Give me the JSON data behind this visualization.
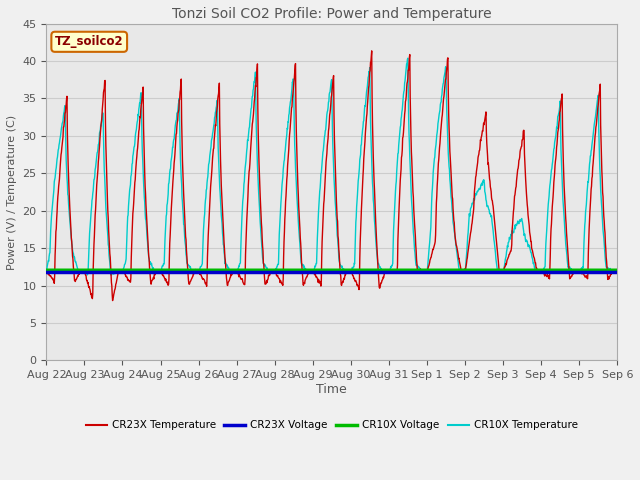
{
  "title": "Tonzi Soil CO2 Profile: Power and Temperature",
  "xlabel": "Time",
  "ylabel": "Power (V) / Temperature (C)",
  "ylim": [
    0,
    45
  ],
  "yticks": [
    0,
    5,
    10,
    15,
    20,
    25,
    30,
    35,
    40,
    45
  ],
  "fig_bg_color": "#f0f0f0",
  "plot_bg_color": "#e8e8e8",
  "annotation_text": "TZ_soilco2",
  "annotation_color": "#8b0000",
  "annotation_bg": "#ffffcc",
  "annotation_border": "#cc6600",
  "legend_entries": [
    "CR23X Temperature",
    "CR23X Voltage",
    "CR10X Voltage",
    "CR10X Temperature"
  ],
  "legend_colors": [
    "#cc0000",
    "#0000cc",
    "#00bb00",
    "#00cccc"
  ],
  "voltage_cr23x": 11.75,
  "voltage_cr10x": 12.05,
  "x_tick_labels": [
    "Aug 22",
    "Aug 23",
    "Aug 24",
    "Aug 25",
    "Aug 26",
    "Aug 27",
    "Aug 28",
    "Aug 29",
    "Aug 30",
    "Aug 31",
    "Sep 1",
    "Sep 2",
    "Sep 3",
    "Sep 4",
    "Sep 5",
    "Sep 6"
  ],
  "grid_color": "#cccccc",
  "title_color": "#555555",
  "axis_label_color": "#555555",
  "tick_color": "#555555"
}
